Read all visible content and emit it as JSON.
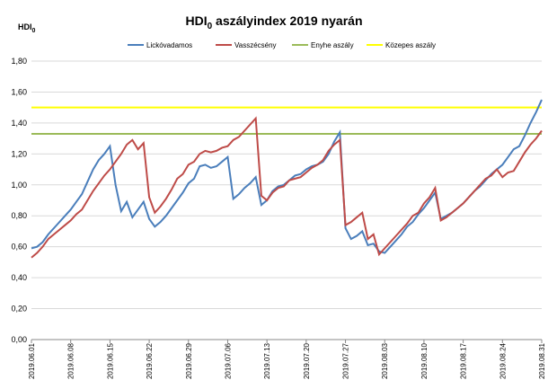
{
  "chart_data": {
    "type": "line",
    "title": [
      "HDI",
      "0",
      " aszályindex 2019 nyarán"
    ],
    "ylabel": [
      "HDI",
      "0"
    ],
    "categories": [
      "2019.06.01",
      null,
      null,
      null,
      null,
      null,
      null,
      "2019.06.08",
      null,
      null,
      null,
      null,
      null,
      null,
      "2019.06.15",
      null,
      null,
      null,
      null,
      null,
      null,
      "2019.06.22",
      null,
      null,
      null,
      null,
      null,
      null,
      "2019.06.29",
      null,
      null,
      null,
      null,
      null,
      null,
      "2019.07.06",
      null,
      null,
      null,
      null,
      null,
      null,
      "2019.07.13",
      null,
      null,
      null,
      null,
      null,
      null,
      "2019.07.20",
      null,
      null,
      null,
      null,
      null,
      null,
      "2019.07.27",
      null,
      null,
      null,
      null,
      null,
      null,
      "2019.08.03",
      null,
      null,
      null,
      null,
      null,
      null,
      "2019.08.10",
      null,
      null,
      null,
      null,
      null,
      null,
      "2019.08.17",
      null,
      null,
      null,
      null,
      null,
      null,
      "2019.08.24",
      null,
      null,
      null,
      null,
      null,
      null,
      "2019.08.31"
    ],
    "series": [
      {
        "name": "Lickóvadamos",
        "color": "#4a7ebb",
        "values": [
          0.59,
          0.6,
          0.63,
          0.68,
          0.72,
          0.76,
          0.8,
          0.84,
          0.89,
          0.94,
          1.02,
          1.1,
          1.16,
          1.2,
          1.25,
          1.0,
          0.83,
          0.89,
          0.79,
          0.84,
          0.89,
          0.78,
          0.73,
          0.76,
          0.8,
          0.85,
          0.9,
          0.95,
          1.01,
          1.04,
          1.12,
          1.13,
          1.11,
          1.12,
          1.15,
          1.18,
          0.91,
          0.94,
          0.98,
          1.01,
          1.05,
          0.87,
          0.9,
          0.96,
          0.99,
          1.0,
          1.03,
          1.06,
          1.07,
          1.1,
          1.12,
          1.13,
          1.15,
          1.2,
          1.28,
          1.34,
          0.72,
          0.65,
          0.67,
          0.7,
          0.61,
          0.62,
          0.57,
          0.56,
          0.6,
          0.64,
          0.68,
          0.73,
          0.76,
          0.81,
          0.85,
          0.9,
          0.95,
          0.78,
          0.8,
          0.82,
          0.85,
          0.88,
          0.92,
          0.96,
          0.99,
          1.03,
          1.07,
          1.1,
          1.13,
          1.18,
          1.23,
          1.25,
          1.32,
          1.4,
          1.47,
          1.55
        ]
      },
      {
        "name": "Vasszécsény",
        "color": "#be4b48",
        "values": [
          0.53,
          0.56,
          0.6,
          0.65,
          0.68,
          0.71,
          0.74,
          0.77,
          0.81,
          0.84,
          0.9,
          0.96,
          1.01,
          1.06,
          1.1,
          1.15,
          1.2,
          1.26,
          1.29,
          1.23,
          1.27,
          0.92,
          0.82,
          0.86,
          0.91,
          0.97,
          1.04,
          1.07,
          1.13,
          1.15,
          1.2,
          1.22,
          1.21,
          1.22,
          1.24,
          1.25,
          1.29,
          1.31,
          1.35,
          1.39,
          1.43,
          0.93,
          0.9,
          0.95,
          0.98,
          0.99,
          1.03,
          1.04,
          1.05,
          1.08,
          1.11,
          1.13,
          1.16,
          1.22,
          1.26,
          1.29,
          0.74,
          0.76,
          0.79,
          0.82,
          0.65,
          0.68,
          0.55,
          0.59,
          0.63,
          0.67,
          0.71,
          0.75,
          0.8,
          0.82,
          0.88,
          0.92,
          0.98,
          0.77,
          0.79,
          0.82,
          0.85,
          0.88,
          0.92,
          0.96,
          1.0,
          1.04,
          1.06,
          1.1,
          1.05,
          1.08,
          1.09,
          1.15,
          1.21,
          1.26,
          1.3,
          1.35
        ]
      }
    ],
    "thresholds": [
      {
        "name": "Enyhe aszály",
        "color": "#9bbb59",
        "value": 1.33
      },
      {
        "name": "Közepes aszály",
        "color": "#ffff00",
        "value": 1.5
      }
    ],
    "ylim": [
      0,
      1.8
    ],
    "yticks": [
      {
        "value": 0,
        "label": "0,00"
      },
      {
        "value": 0.2,
        "label": "0,20"
      },
      {
        "value": 0.4,
        "label": "0,40"
      },
      {
        "value": 0.6,
        "label": "0,60"
      },
      {
        "value": 0.8,
        "label": "0,80"
      },
      {
        "value": 1.0,
        "label": "1,00"
      },
      {
        "value": 1.2,
        "label": "1,20"
      },
      {
        "value": 1.4,
        "label": "1,40"
      },
      {
        "value": 1.6,
        "label": "1,60"
      },
      {
        "value": 1.8,
        "label": "1,80"
      }
    ],
    "grid": true,
    "legend": "top"
  }
}
